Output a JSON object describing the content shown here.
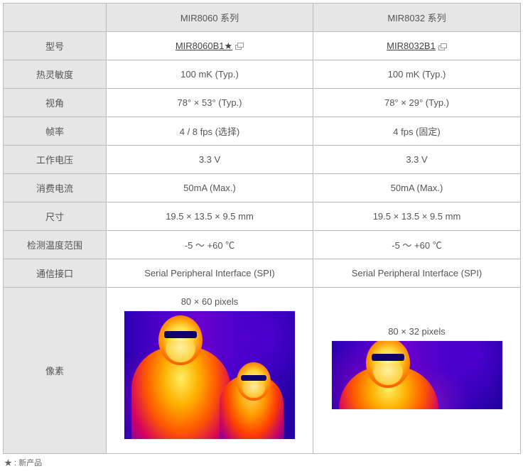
{
  "table": {
    "header_blank": "",
    "col1": "MIR8060 系列",
    "col2": "MIR8032 系列"
  },
  "rows": {
    "model": {
      "label": "型号",
      "v1": "MIR8060B1★",
      "v2": "MIR8032B1",
      "link": true
    },
    "sensitivity": {
      "label": "热灵敏度",
      "v1": "100 mK (Typ.)",
      "v2": "100 mK (Typ.)"
    },
    "fov": {
      "label": "视角",
      "v1": "78° × 53° (Typ.)",
      "v2": "78° × 29° (Typ.)"
    },
    "fps": {
      "label": "帧率",
      "v1": "4 / 8 fps  (选择)",
      "v2": "4 fps  (固定)"
    },
    "voltage": {
      "label": "工作电压",
      "v1": "3.3 V",
      "v2": "3.3 V"
    },
    "current": {
      "label": "消费电流",
      "v1": "50mA (Max.)",
      "v2": "50mA (Max.)"
    },
    "size": {
      "label": "尺寸",
      "v1": "19.5 × 13.5 × 9.5 mm",
      "v2": "19.5 × 13.5 × 9.5 mm"
    },
    "temp": {
      "label": "检测温度范围",
      "v1": "-5 ～ +60 ℃",
      "v2": "-5 ～ +60 ℃"
    },
    "iface": {
      "label": "通信接口",
      "v1": "Serial Peripheral Interface (SPI)",
      "v2": "Serial Peripheral Interface (SPI)"
    },
    "pixels": {
      "label": "像素",
      "v1": "80 × 60 pixels",
      "v2": "80 × 32 pixels"
    }
  },
  "footnote": "★ : 新产品",
  "colors": {
    "header_bg": "#e6e6e6",
    "border": "#bbbbbb",
    "text": "#555555"
  }
}
